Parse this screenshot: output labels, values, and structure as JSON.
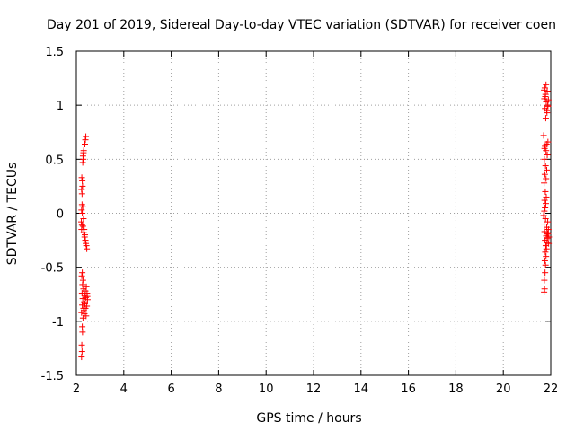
{
  "chart_data": {
    "type": "scatter",
    "title": "Day 201 of 2019, Sidereal Day-to-day VTEC variation (SDTVAR) for receiver coen",
    "xlabel": "GPS time / hours",
    "ylabel": "SDTVAR / TECUs",
    "xlim": [
      2,
      22
    ],
    "ylim": [
      -1.5,
      1.5
    ],
    "xticks": [
      2,
      4,
      6,
      8,
      10,
      12,
      14,
      16,
      18,
      20,
      22
    ],
    "yticks": [
      -1.5,
      -1,
      -0.5,
      0,
      0.5,
      1,
      1.5
    ],
    "xtick_labels": [
      "2",
      "4",
      "6",
      "8",
      "10",
      "12",
      "14",
      "16",
      "18",
      "20",
      "22"
    ],
    "ytick_labels": [
      "-1.5",
      "-1",
      "-0.5",
      "0",
      "0.5",
      "1",
      "1.5"
    ],
    "grid": true,
    "marker": "+",
    "series": [
      {
        "color": "#ff0000",
        "points": [
          [
            2.22,
            -1.33
          ],
          [
            2.24,
            -1.28
          ],
          [
            2.23,
            -1.22
          ],
          [
            2.26,
            -1.1
          ],
          [
            2.25,
            -1.05
          ],
          [
            2.28,
            -0.97
          ],
          [
            2.22,
            -0.92
          ],
          [
            2.3,
            -0.88
          ],
          [
            2.25,
            -0.85
          ],
          [
            2.33,
            -0.82
          ],
          [
            2.27,
            -0.79
          ],
          [
            2.35,
            -0.76
          ],
          [
            2.24,
            -0.74
          ],
          [
            2.38,
            -0.72
          ],
          [
            2.3,
            -0.7
          ],
          [
            2.42,
            -0.68
          ],
          [
            2.26,
            -0.66
          ],
          [
            2.45,
            -0.74
          ],
          [
            2.4,
            -0.78
          ],
          [
            2.36,
            -0.84
          ],
          [
            2.44,
            -0.86
          ],
          [
            2.32,
            -0.9
          ],
          [
            2.47,
            -0.8
          ],
          [
            2.28,
            -0.62
          ],
          [
            2.23,
            -0.58
          ],
          [
            2.25,
            -0.55
          ],
          [
            2.34,
            -0.93
          ],
          [
            2.41,
            -0.95
          ],
          [
            2.38,
            -0.88
          ],
          [
            2.46,
            -0.77
          ],
          [
            2.22,
            -0.15
          ],
          [
            2.24,
            -0.11
          ],
          [
            2.21,
            -0.08
          ],
          [
            2.28,
            -0.12
          ],
          [
            2.25,
            0.0
          ],
          [
            2.22,
            0.03
          ],
          [
            2.27,
            0.06
          ],
          [
            2.24,
            0.08
          ],
          [
            2.3,
            -0.05
          ],
          [
            2.33,
            -0.15
          ],
          [
            2.36,
            -0.2
          ],
          [
            2.38,
            -0.25
          ],
          [
            2.4,
            -0.28
          ],
          [
            2.42,
            -0.3
          ],
          [
            2.44,
            -0.33
          ],
          [
            2.35,
            -0.22
          ],
          [
            2.31,
            -0.18
          ],
          [
            2.24,
            0.18
          ],
          [
            2.22,
            0.22
          ],
          [
            2.26,
            0.25
          ],
          [
            2.25,
            0.3
          ],
          [
            2.23,
            0.33
          ],
          [
            2.27,
            0.47
          ],
          [
            2.29,
            0.5
          ],
          [
            2.28,
            0.53
          ],
          [
            2.3,
            0.56
          ],
          [
            2.31,
            0.58
          ],
          [
            2.36,
            0.64
          ],
          [
            2.38,
            0.68
          ],
          [
            2.4,
            0.71
          ],
          [
            21.72,
            -0.73
          ],
          [
            21.74,
            -0.7
          ],
          [
            21.73,
            -0.62
          ],
          [
            21.76,
            -0.55
          ],
          [
            21.78,
            -0.48
          ],
          [
            21.75,
            -0.44
          ],
          [
            21.8,
            -0.4
          ],
          [
            21.77,
            -0.36
          ],
          [
            21.82,
            -0.33
          ],
          [
            21.79,
            -0.3
          ],
          [
            21.84,
            -0.27
          ],
          [
            21.76,
            -0.25
          ],
          [
            21.86,
            -0.23
          ],
          [
            21.81,
            -0.21
          ],
          [
            21.88,
            -0.19
          ],
          [
            21.74,
            -0.17
          ],
          [
            21.9,
            -0.15
          ],
          [
            21.83,
            -0.13
          ],
          [
            21.72,
            -0.1
          ],
          [
            21.87,
            -0.08
          ],
          [
            21.78,
            -0.05
          ],
          [
            21.92,
            -0.22
          ],
          [
            21.85,
            -0.18
          ],
          [
            21.91,
            -0.28
          ],
          [
            21.7,
            -0.02
          ],
          [
            21.73,
            0.02
          ],
          [
            21.76,
            0.05
          ],
          [
            21.79,
            0.09
          ],
          [
            21.74,
            0.12
          ],
          [
            21.81,
            0.15
          ],
          [
            21.77,
            0.2
          ],
          [
            21.72,
            0.28
          ],
          [
            21.8,
            0.32
          ],
          [
            21.75,
            0.36
          ],
          [
            21.83,
            0.4
          ],
          [
            21.78,
            0.44
          ],
          [
            21.73,
            0.5
          ],
          [
            21.85,
            0.54
          ],
          [
            21.8,
            0.58
          ],
          [
            21.76,
            0.62
          ],
          [
            21.88,
            0.66
          ],
          [
            21.82,
            0.64
          ],
          [
            21.74,
            0.6
          ],
          [
            21.7,
            0.72
          ],
          [
            21.79,
            0.88
          ],
          [
            21.84,
            0.93
          ],
          [
            21.76,
            0.97
          ],
          [
            21.87,
            1.0
          ],
          [
            21.81,
            1.03
          ],
          [
            21.73,
            1.06
          ],
          [
            21.9,
            1.05
          ],
          [
            21.78,
            1.1
          ],
          [
            21.85,
            1.13
          ],
          [
            21.75,
            1.16
          ],
          [
            21.8,
            1.19
          ],
          [
            21.72,
            1.14
          ],
          [
            21.88,
            0.99
          ],
          [
            21.83,
            0.95
          ],
          [
            21.77,
            1.08
          ]
        ]
      }
    ]
  }
}
